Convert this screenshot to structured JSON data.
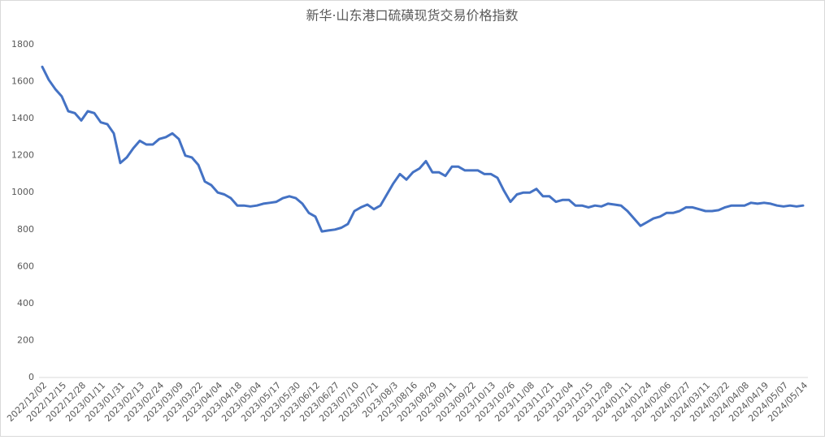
{
  "chart_data": {
    "type": "line",
    "title": "新华·山东港口硫磺现货交易价格指数",
    "categories": [
      "2022/12/02",
      null,
      null,
      "2022/12/15",
      null,
      null,
      "2022/12/28",
      null,
      null,
      "2023/01/11",
      null,
      null,
      "2023/01/31",
      null,
      null,
      "2023/02/13",
      null,
      null,
      "2023/02/24",
      null,
      null,
      "2023/03/09",
      null,
      null,
      "2023/03/22",
      null,
      null,
      "2023/04/04",
      null,
      null,
      "2023/04/18",
      null,
      null,
      "2023/05/04",
      null,
      null,
      "2023/05/17",
      null,
      null,
      "2023/05/30",
      null,
      null,
      "2023/06/12",
      null,
      null,
      "2023/06/27",
      null,
      null,
      "2023/07/10",
      null,
      null,
      "2023/07/21",
      null,
      null,
      "2023/08/3",
      null,
      null,
      "2023/08/16",
      null,
      null,
      "2023/08/29",
      null,
      null,
      "2023/09/11",
      null,
      null,
      "2023/09/22",
      null,
      null,
      "2023/10/13",
      null,
      null,
      "2023/10/26",
      null,
      null,
      "2023/11/08",
      null,
      null,
      "2023/11/21",
      null,
      null,
      "2023/12/04",
      null,
      null,
      "2023/12/15",
      null,
      null,
      "2023/12/28",
      null,
      null,
      "2024/01/11",
      null,
      null,
      "2024/01/24",
      null,
      null,
      "2024/02/06",
      null,
      null,
      "2024/02/27",
      null,
      null,
      "2024/03/11",
      null,
      null,
      "2024/03/22",
      null,
      null,
      "2024/04/08",
      null,
      null,
      "2024/04/19",
      null,
      null,
      "2024/05/07",
      null,
      null,
      "2024/05/14"
    ],
    "series": [
      {
        "name": "新华·山东港口硫磺现货交易价格指数",
        "color": "#4472c4",
        "values": [
          1680,
          1610,
          1560,
          1520,
          1440,
          1430,
          1390,
          1440,
          1430,
          1380,
          1370,
          1320,
          1160,
          1190,
          1240,
          1280,
          1260,
          1260,
          1290,
          1300,
          1320,
          1290,
          1200,
          1190,
          1150,
          1060,
          1040,
          1000,
          990,
          970,
          930,
          930,
          925,
          930,
          940,
          945,
          950,
          970,
          980,
          970,
          940,
          890,
          870,
          790,
          795,
          800,
          810,
          830,
          900,
          920,
          935,
          910,
          930,
          990,
          1050,
          1100,
          1070,
          1110,
          1130,
          1170,
          1110,
          1110,
          1090,
          1140,
          1140,
          1120,
          1120,
          1120,
          1100,
          1100,
          1080,
          1010,
          950,
          990,
          1000,
          1000,
          1020,
          980,
          980,
          950,
          960,
          960,
          930,
          930,
          920,
          930,
          925,
          940,
          935,
          930,
          900,
          860,
          820,
          840,
          860,
          870,
          890,
          890,
          900,
          920,
          920,
          910,
          900,
          900,
          905,
          920,
          930,
          930,
          930,
          945,
          940,
          945,
          940,
          930,
          925,
          930,
          925,
          930
        ]
      }
    ],
    "ylim": [
      0,
      1800
    ],
    "yticks": [
      0,
      200,
      400,
      600,
      800,
      1000,
      1200,
      1400,
      1600,
      1800
    ],
    "grid": false
  }
}
